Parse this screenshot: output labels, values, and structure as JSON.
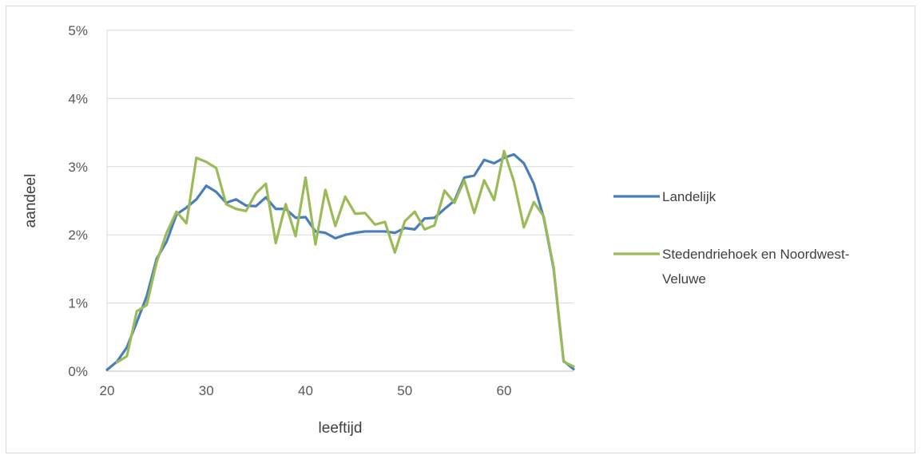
{
  "chart_data": {
    "type": "line",
    "title": "",
    "xlabel": "leeftijd",
    "ylabel": "aandeel",
    "xlim": [
      20,
      67
    ],
    "ylim": [
      0,
      5
    ],
    "x_ticks": [
      20,
      30,
      40,
      50,
      60
    ],
    "y_ticks": [
      "0%",
      "1%",
      "2%",
      "3%",
      "4%",
      "5%"
    ],
    "grid": "horizontal",
    "legend_position": "right",
    "x": [
      20,
      21,
      22,
      23,
      24,
      25,
      26,
      27,
      28,
      29,
      30,
      31,
      32,
      33,
      34,
      35,
      36,
      37,
      38,
      39,
      40,
      41,
      42,
      43,
      44,
      45,
      46,
      47,
      48,
      49,
      50,
      51,
      52,
      53,
      54,
      55,
      56,
      57,
      58,
      59,
      60,
      61,
      62,
      63,
      64,
      65,
      66,
      67
    ],
    "series": [
      {
        "name": "Landelijk",
        "color": "#4a7ebb",
        "values": [
          0.02,
          0.14,
          0.35,
          0.72,
          1.1,
          1.65,
          1.9,
          2.3,
          2.4,
          2.52,
          2.72,
          2.63,
          2.47,
          2.52,
          2.43,
          2.42,
          2.55,
          2.38,
          2.38,
          2.25,
          2.26,
          2.05,
          2.03,
          1.95,
          2.0,
          2.03,
          2.05,
          2.05,
          2.05,
          2.03,
          2.1,
          2.08,
          2.24,
          2.25,
          2.38,
          2.5,
          2.84,
          2.87,
          3.1,
          3.05,
          3.13,
          3.18,
          3.05,
          2.75,
          2.25,
          1.5,
          0.15,
          0.03
        ]
      },
      {
        "name": "Stedendriehoek en Noordwest-Veluwe",
        "color": "#9bbb59",
        "values": [
          null,
          0.13,
          0.22,
          0.88,
          0.97,
          1.6,
          2.03,
          2.34,
          2.17,
          3.13,
          3.07,
          2.98,
          2.45,
          2.38,
          2.35,
          2.61,
          2.75,
          1.88,
          2.45,
          1.98,
          2.84,
          1.86,
          2.66,
          2.13,
          2.56,
          2.31,
          2.32,
          2.15,
          2.19,
          1.74,
          2.2,
          2.34,
          2.08,
          2.14,
          2.65,
          2.47,
          2.8,
          2.32,
          2.8,
          2.51,
          3.23,
          2.78,
          2.11,
          2.48,
          2.27,
          1.52,
          0.14,
          0.07
        ]
      }
    ]
  },
  "legend": {
    "items": [
      {
        "lines": [
          "Landelijk"
        ]
      },
      {
        "lines": [
          "Stedendriehoek en Noordwest-",
          "Veluwe"
        ]
      }
    ]
  }
}
